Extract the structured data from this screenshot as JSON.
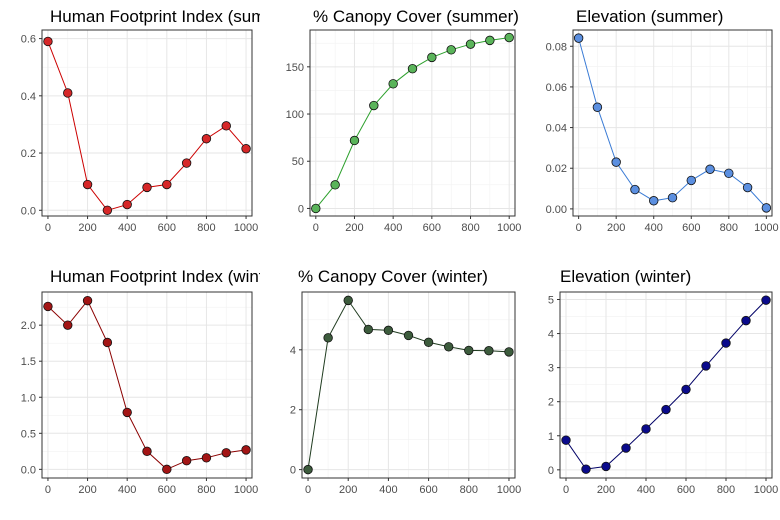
{
  "chart_data": [
    {
      "type": "line",
      "title": "Human Footprint Index (summer)",
      "x": [
        0,
        100,
        200,
        300,
        400,
        500,
        600,
        700,
        800,
        900,
        1000
      ],
      "y": [
        0.59,
        0.41,
        0.09,
        0.0,
        0.02,
        0.08,
        0.09,
        0.165,
        0.25,
        0.295,
        0.215
      ],
      "xlim": [
        -30,
        1030
      ],
      "ylim": [
        -0.02,
        0.63
      ],
      "xticks": [
        0,
        200,
        400,
        600,
        800,
        1000
      ],
      "yticks": [
        0.0,
        0.2,
        0.4,
        0.6
      ],
      "ytick_decimals": 1,
      "color": "#d62728",
      "line_color": "#cc0000",
      "grid": true
    },
    {
      "type": "line",
      "title": "% Canopy Cover (summer)",
      "x": [
        0,
        100,
        200,
        300,
        400,
        500,
        600,
        700,
        800,
        900,
        1000
      ],
      "y": [
        0,
        25,
        72,
        109,
        132,
        148,
        160,
        168,
        174,
        178,
        181
      ],
      "xlim": [
        -30,
        1030
      ],
      "ylim": [
        -8,
        189
      ],
      "xticks": [
        0,
        200,
        400,
        600,
        800,
        1000
      ],
      "yticks": [
        0,
        50,
        100,
        150
      ],
      "ytick_decimals": 0,
      "color": "#5ab45a",
      "line_color": "#2ca02c",
      "grid": true
    },
    {
      "type": "line",
      "title": "Elevation (summer)",
      "x": [
        0,
        100,
        200,
        300,
        400,
        500,
        600,
        700,
        800,
        900,
        1000
      ],
      "y": [
        0.084,
        0.05,
        0.023,
        0.0095,
        0.004,
        0.0055,
        0.014,
        0.0195,
        0.0175,
        0.0105,
        0.0005
      ],
      "xlim": [
        -30,
        1030
      ],
      "ylim": [
        -0.0035,
        0.088
      ],
      "xticks": [
        0,
        200,
        400,
        600,
        800,
        1000
      ],
      "yticks": [
        0.0,
        0.02,
        0.04,
        0.06,
        0.08
      ],
      "ytick_decimals": 2,
      "color": "#5b8fe0",
      "line_color": "#3a7bd5",
      "grid": true
    },
    {
      "type": "line",
      "title": "Human Footprint Index (winter)",
      "x": [
        0,
        100,
        200,
        300,
        400,
        500,
        600,
        700,
        800,
        900,
        1000
      ],
      "y": [
        2.26,
        2.0,
        2.34,
        1.76,
        0.79,
        0.25,
        0.0,
        0.12,
        0.16,
        0.23,
        0.27
      ],
      "xlim": [
        -30,
        1030
      ],
      "ylim": [
        -0.12,
        2.46
      ],
      "xticks": [
        0,
        200,
        400,
        600,
        800,
        1000
      ],
      "yticks": [
        0.0,
        0.5,
        1.0,
        1.5,
        2.0
      ],
      "ytick_decimals": 1,
      "color": "#a31515",
      "line_color": "#8b0000",
      "grid": true
    },
    {
      "type": "line",
      "title": "% Canopy Cover (winter)",
      "x": [
        0,
        100,
        200,
        300,
        400,
        500,
        600,
        700,
        800,
        900,
        1000
      ],
      "y": [
        0.0,
        4.4,
        5.65,
        4.68,
        4.65,
        4.48,
        4.25,
        4.1,
        3.98,
        3.97,
        3.93
      ],
      "xlim": [
        -30,
        1030
      ],
      "ylim": [
        -0.28,
        5.93
      ],
      "xticks": [
        0,
        200,
        400,
        600,
        800,
        1000
      ],
      "yticks": [
        0,
        2,
        4
      ],
      "ytick_decimals": 0,
      "color": "#3d5c3d",
      "line_color": "#1f3b1f",
      "grid": true
    },
    {
      "type": "line",
      "title": "Elevation (winter)",
      "x": [
        0,
        100,
        200,
        300,
        400,
        500,
        600,
        700,
        800,
        900,
        1000
      ],
      "y": [
        0.87,
        0.02,
        0.1,
        0.64,
        1.2,
        1.77,
        2.36,
        3.05,
        3.72,
        4.38,
        4.98
      ],
      "xlim": [
        -30,
        1030
      ],
      "ylim": [
        -0.24,
        5.22
      ],
      "xticks": [
        0,
        200,
        400,
        600,
        800,
        1000
      ],
      "yticks": [
        0,
        1,
        2,
        3,
        4,
        5
      ],
      "ytick_decimals": 0,
      "color": "#0a0a8c",
      "line_color": "#000066",
      "grid": true
    }
  ]
}
